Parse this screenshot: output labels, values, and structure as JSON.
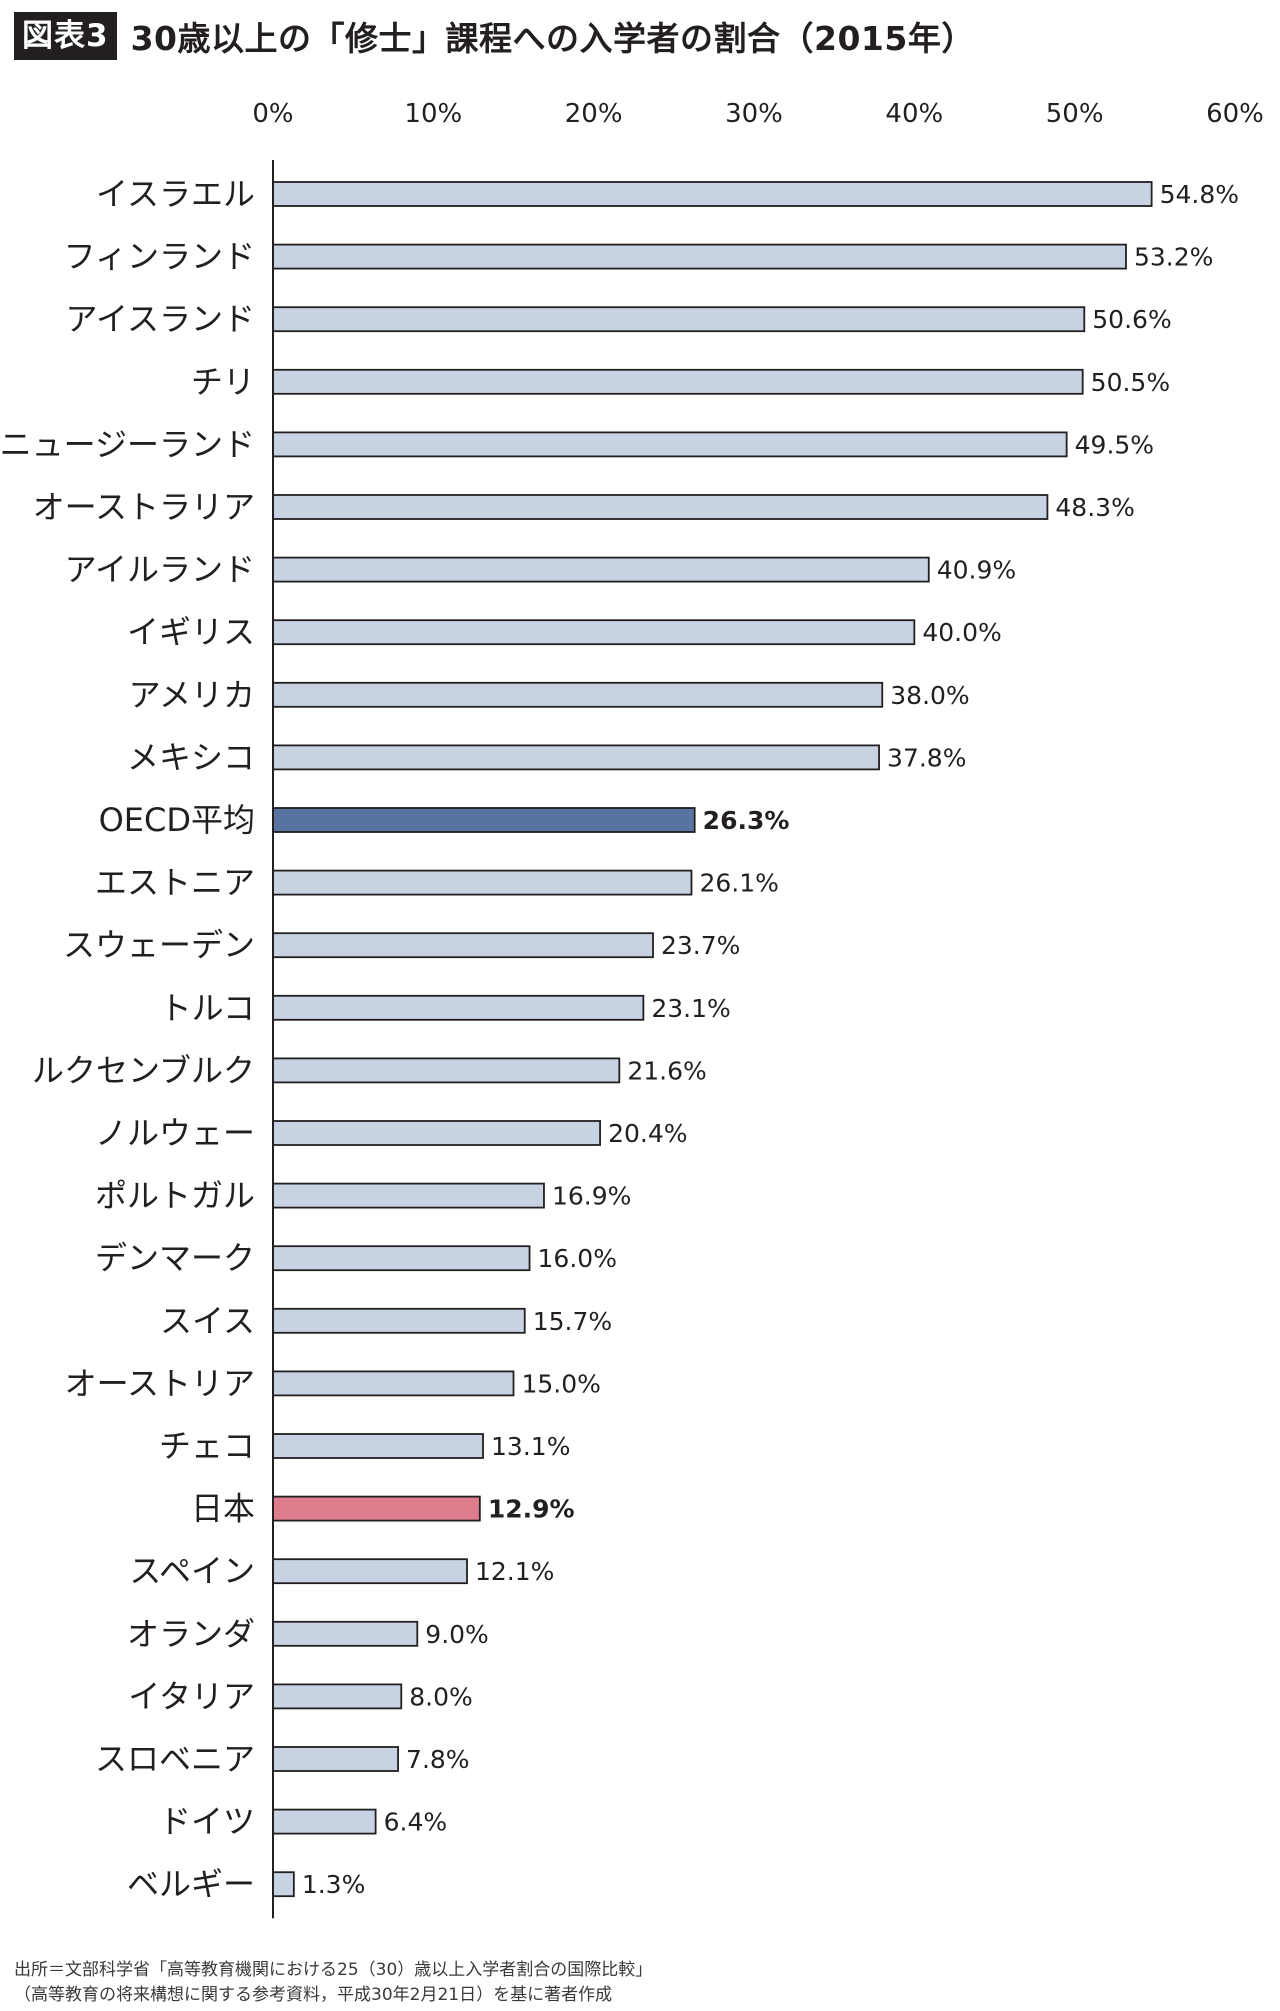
{
  "header": {
    "badge": "図表3",
    "title": "30歳以上の「修士」課程への入学者の割合（2015年）"
  },
  "chart_data": {
    "type": "bar",
    "orientation": "horizontal",
    "xlim": [
      0,
      60
    ],
    "x_ticks": [
      "0%",
      "10%",
      "20%",
      "30%",
      "40%",
      "50%",
      "60%"
    ],
    "value_suffix": "%",
    "categories": [
      "イスラエル",
      "フィンランド",
      "アイスランド",
      "チリ",
      "ニュージーランド",
      "オーストラリア",
      "アイルランド",
      "イギリス",
      "アメリカ",
      "メキシコ",
      "OECD平均",
      "エストニア",
      "スウェーデン",
      "トルコ",
      "ルクセンブルク",
      "ノルウェー",
      "ポルトガル",
      "デンマーク",
      "スイス",
      "オーストリア",
      "チェコ",
      "日本",
      "スペイン",
      "オランダ",
      "イタリア",
      "スロベニア",
      "ドイツ",
      "ベルギー"
    ],
    "values": [
      54.8,
      53.2,
      50.6,
      50.5,
      49.5,
      48.3,
      40.9,
      40.0,
      38.0,
      37.8,
      26.3,
      26.1,
      23.7,
      23.1,
      21.6,
      20.4,
      16.9,
      16.0,
      15.7,
      15.0,
      13.1,
      12.9,
      12.1,
      9.0,
      8.0,
      7.8,
      6.4,
      1.3
    ],
    "value_labels": [
      "54.8%",
      "53.2%",
      "50.6%",
      "50.5%",
      "49.5%",
      "48.3%",
      "40.9%",
      "40.0%",
      "38.0%",
      "37.8%",
      "26.3%",
      "26.1%",
      "23.7%",
      "23.1%",
      "21.6%",
      "20.4%",
      "16.9%",
      "16.0%",
      "15.7%",
      "15.0%",
      "13.1%",
      "12.9%",
      "12.1%",
      "9.0%",
      "8.0%",
      "7.8%",
      "6.4%",
      "1.3%"
    ],
    "highlights": {
      "OECD平均": {
        "color": "#5872a1",
        "bold_label": true
      },
      "日本": {
        "color": "#dc7c8c",
        "bold_label": true
      }
    },
    "default_color": "#c7d3e3",
    "grid": false,
    "legend": "none"
  },
  "source": {
    "line1": "出所＝文部科学省「高等教育機関における25（30）歳以上入学者割合の国際比較」",
    "line2": "（高等教育の将来構想に関する参考資料，平成30年2月21日）を基に著者作成"
  }
}
